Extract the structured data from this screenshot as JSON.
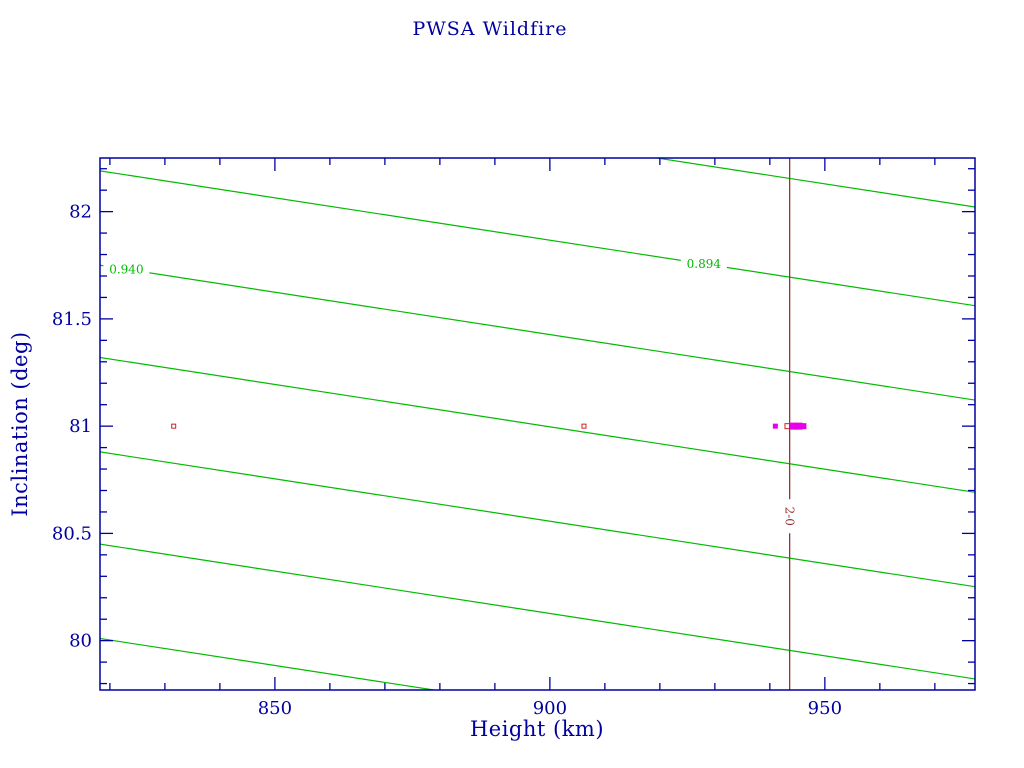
{
  "chart_data": {
    "type": "line",
    "subtype": "contour-lines-with-scatter",
    "title": "PWSA Wildfire",
    "xlabel": "Height (km)",
    "ylabel": "Inclination (deg)",
    "xlim": [
      818.2,
      977.3
    ],
    "ylim": [
      79.77,
      82.25
    ],
    "x_major_ticks": [
      850,
      900,
      950
    ],
    "x_tick_labels": [
      "850",
      "900",
      "950"
    ],
    "x_minor_step": 10,
    "y_major_ticks": [
      80,
      80.5,
      81,
      81.5,
      82
    ],
    "y_tick_labels": [
      "80",
      "80.5",
      "81",
      "81.5",
      "82"
    ],
    "y_minor_step": 0.1,
    "grid": false,
    "legend": null,
    "colors": {
      "background": "#ffffff",
      "axis": "#0000A0",
      "title": "#0000A0",
      "contour": "#00BB00",
      "vline": "#993333",
      "point_red": "#CC2222",
      "point_magenta": "#E800E8"
    },
    "contours": {
      "slope_deg_per_km": -0.00395,
      "lines": [
        {
          "deg_at_xmin": 82.65
        },
        {
          "deg_at_xmin": 82.19,
          "label": "0.894",
          "label_km": 928
        },
        {
          "deg_at_xmin": 81.75,
          "label": "0.940",
          "label_km": 823
        },
        {
          "deg_at_xmin": 81.32
        },
        {
          "deg_at_xmin": 80.88
        },
        {
          "deg_at_xmin": 80.45
        },
        {
          "deg_at_xmin": 80.01
        }
      ]
    },
    "vline": {
      "km": 943.6,
      "label": "2-0",
      "label_deg": 80.58
    },
    "points": [
      {
        "km": 831.6,
        "deg": 81.0,
        "style": "red-open",
        "size": 4
      },
      {
        "km": 906.2,
        "deg": 81.0,
        "style": "red-open",
        "size": 4
      },
      {
        "km": 941.0,
        "deg": 81.0,
        "style": "magenta",
        "size": 4
      },
      {
        "km": 943.2,
        "deg": 81.0,
        "style": "red-open",
        "size": 5
      },
      {
        "km": 944.3,
        "deg": 81.0,
        "style": "magenta",
        "size": 6
      },
      {
        "km": 945.3,
        "deg": 81.0,
        "style": "magenta",
        "size": 6
      },
      {
        "km": 946.1,
        "deg": 81.0,
        "style": "magenta",
        "size": 5
      }
    ]
  }
}
